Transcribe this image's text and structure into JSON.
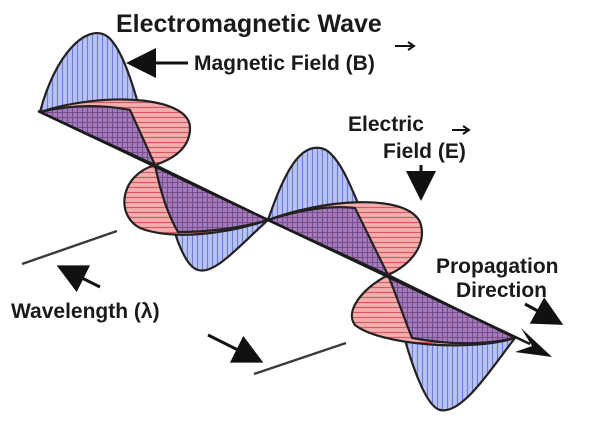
{
  "title": "Electromagnetic Wave",
  "labels": {
    "magnetic_field": "Magnetic Field (B)",
    "electric_field_line1": "Electric",
    "electric_field_line2": "Field (E)",
    "wavelength": "Wavelength (λ)",
    "propagation_line1": "Propagation",
    "propagation_line2": "Direction"
  },
  "colors": {
    "magnetic_fill": "#b9c3f0",
    "magnetic_hatch": "#6f7ed8",
    "electric_fill": "#f3aeb0",
    "electric_hatch": "#d75a63",
    "overlap_fill": "#9f74b5",
    "outline": "#222222",
    "text": "#1a1a1a"
  },
  "icons": {
    "magnetic_vector": "vector-arrow-icon",
    "electric_vector": "vector-arrow-icon",
    "propagation": "arrow-icon"
  }
}
